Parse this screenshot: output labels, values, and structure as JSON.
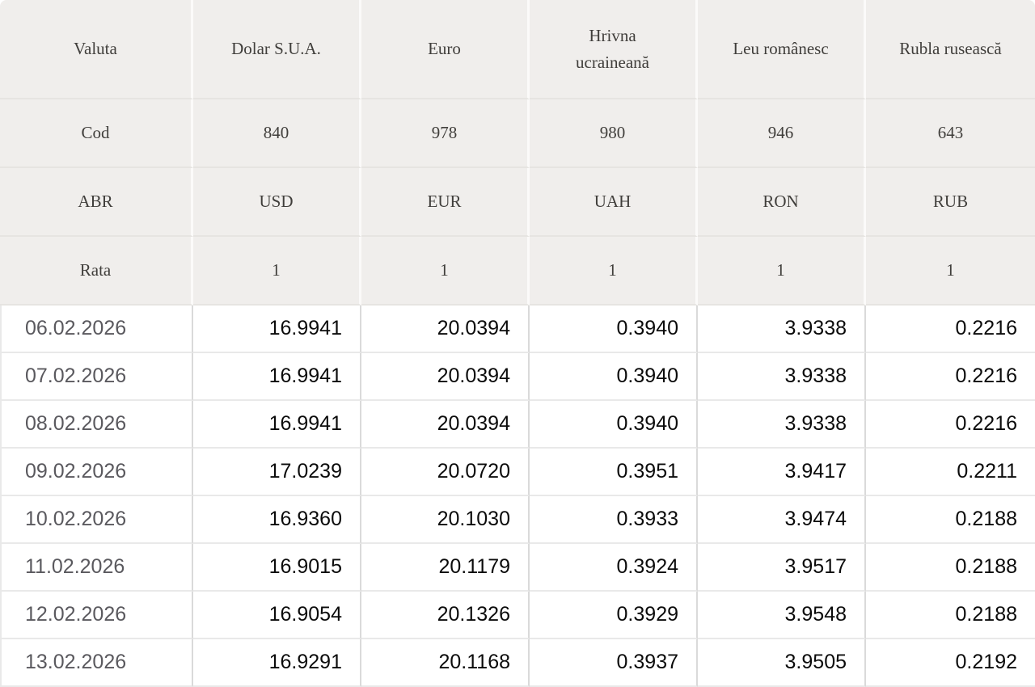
{
  "chart_data": {
    "type": "table",
    "header_rows": [
      {
        "label": "Valuta",
        "cells": [
          "Dolar S.U.A.",
          "Euro",
          "Hrivna ucraineană",
          "Leu românesc",
          "Rubla rusească"
        ]
      },
      {
        "label": "Cod",
        "cells": [
          "840",
          "978",
          "980",
          "946",
          "643"
        ]
      },
      {
        "label": "ABR",
        "cells": [
          "USD",
          "EUR",
          "UAH",
          "RON",
          "RUB"
        ]
      },
      {
        "label": "Rata",
        "cells": [
          "1",
          "1",
          "1",
          "1",
          "1"
        ]
      }
    ],
    "data_rows": [
      {
        "date": "06.02.2026",
        "cells": [
          "16.9941",
          "20.0394",
          "0.3940",
          "3.9338",
          "0.2216"
        ]
      },
      {
        "date": "07.02.2026",
        "cells": [
          "16.9941",
          "20.0394",
          "0.3940",
          "3.9338",
          "0.2216"
        ]
      },
      {
        "date": "08.02.2026",
        "cells": [
          "16.9941",
          "20.0394",
          "0.3940",
          "3.9338",
          "0.2216"
        ]
      },
      {
        "date": "09.02.2026",
        "cells": [
          "17.0239",
          "20.0720",
          "0.3951",
          "3.9417",
          "0.2211"
        ]
      },
      {
        "date": "10.02.2026",
        "cells": [
          "16.9360",
          "20.1030",
          "0.3933",
          "3.9474",
          "0.2188"
        ]
      },
      {
        "date": "11.02.2026",
        "cells": [
          "16.9015",
          "20.1179",
          "0.3924",
          "3.9517",
          "0.2188"
        ]
      },
      {
        "date": "12.02.2026",
        "cells": [
          "16.9054",
          "20.1326",
          "0.3929",
          "3.9548",
          "0.2188"
        ]
      },
      {
        "date": "13.02.2026",
        "cells": [
          "16.9291",
          "20.1168",
          "0.3937",
          "3.9505",
          "0.2192"
        ]
      }
    ],
    "layout": {
      "column_count": 6,
      "grid": "on"
    }
  },
  "colors": {
    "header_bg": "#f0eeec",
    "header_text": "#403e3b",
    "header_gap": "#fbfaf9",
    "header_divider": "#e6e4e1",
    "date_text": "#5a595e",
    "value_text": "#0b0b0b",
    "grid_vertical": "#dadada",
    "grid_horizontal": "#e9e9e9",
    "page_bg": "#ffffff"
  }
}
